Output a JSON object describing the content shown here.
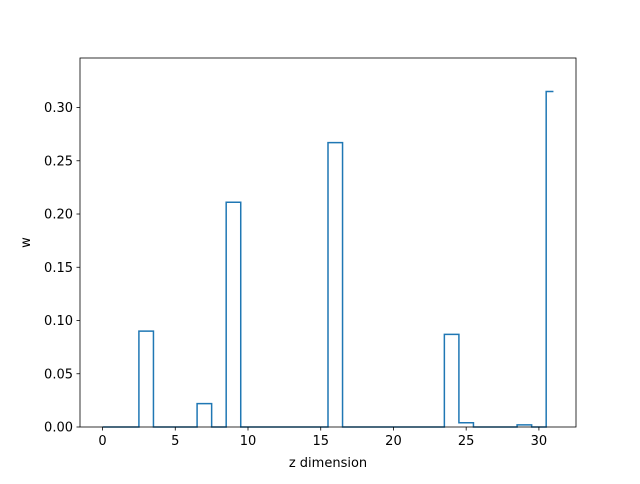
{
  "chart_data": {
    "type": "line",
    "drawstyle": "steps-mid",
    "xlabel": "z dimension",
    "ylabel": "w",
    "xlim": [
      -1.55,
      32.55
    ],
    "ylim": [
      0,
      0.3465
    ],
    "xticks": [
      0,
      5,
      10,
      15,
      20,
      25,
      30
    ],
    "yticks": [
      0.0,
      0.05,
      0.1,
      0.15,
      0.2,
      0.25,
      0.3
    ],
    "ytick_labels": [
      "0.00",
      "0.05",
      "0.10",
      "0.15",
      "0.20",
      "0.25",
      "0.30"
    ],
    "series": [
      {
        "color": "#1f77b4",
        "x": [
          0,
          1,
          2,
          3,
          4,
          5,
          6,
          7,
          8,
          9,
          10,
          11,
          12,
          13,
          14,
          15,
          16,
          17,
          18,
          19,
          20,
          21,
          22,
          23,
          24,
          25,
          26,
          27,
          28,
          29,
          30,
          31
        ],
        "values": [
          0,
          0,
          0,
          0.09,
          0,
          0,
          0,
          0.022,
          0,
          0.211,
          0,
          0,
          0,
          0,
          0,
          0,
          0.267,
          0,
          0,
          0,
          0,
          0,
          0,
          0,
          0.087,
          0.004,
          0,
          0,
          0,
          0.002,
          0,
          0.315
        ]
      }
    ]
  }
}
